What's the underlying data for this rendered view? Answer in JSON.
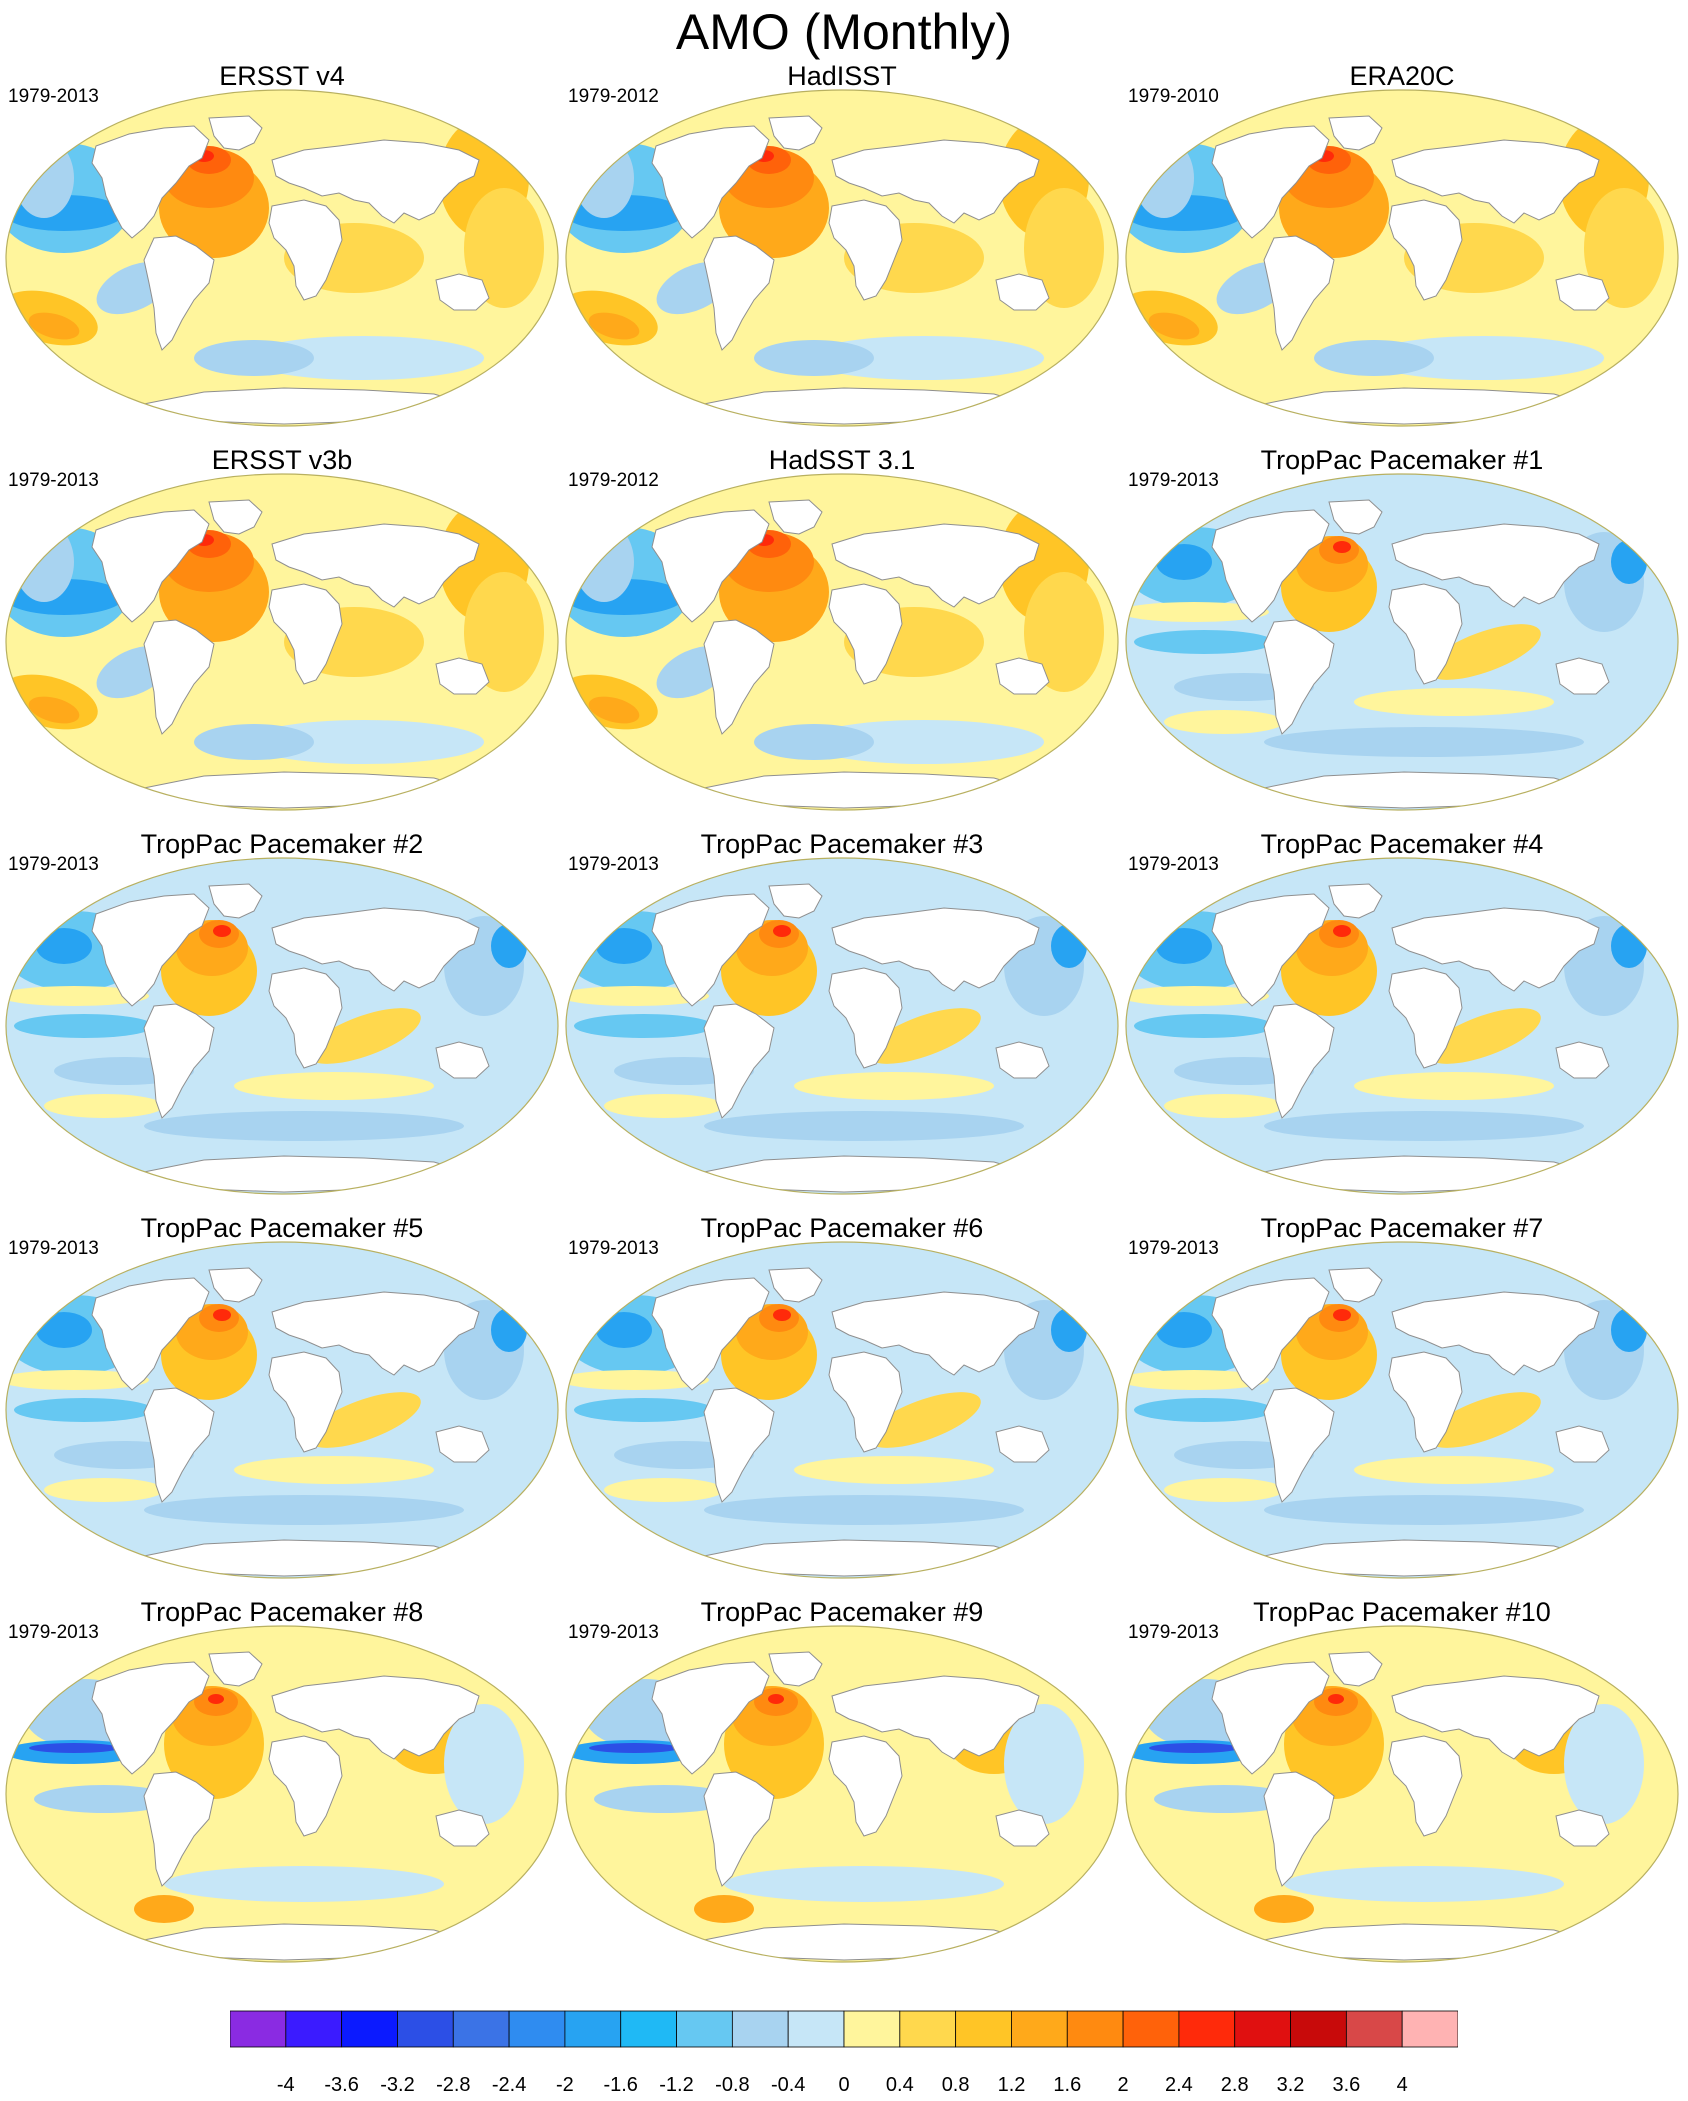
{
  "title": "AMO (Monthly)",
  "panels": [
    {
      "name": "ERSST v4",
      "period": "1979-2013",
      "pattern": "obs_warm_pacific"
    },
    {
      "name": "HadISST",
      "period": "1979-2012",
      "pattern": "obs_warm_pacific"
    },
    {
      "name": "ERA20C",
      "period": "1979-2010",
      "pattern": "obs_warm_pacific"
    },
    {
      "name": "ERSST v3b",
      "period": "1979-2013",
      "pattern": "obs_warm_pacific"
    },
    {
      "name": "HadSST 3.1",
      "period": "1979-2012",
      "pattern": "obs_warm_pacific"
    },
    {
      "name": "TropPac Pacemaker #1",
      "period": "1979-2013",
      "pattern": "model_cool"
    },
    {
      "name": "TropPac Pacemaker #2",
      "period": "1979-2013",
      "pattern": "model_cool"
    },
    {
      "name": "TropPac Pacemaker #3",
      "period": "1979-2013",
      "pattern": "model_cool"
    },
    {
      "name": "TropPac Pacemaker #4",
      "period": "1979-2013",
      "pattern": "model_cool"
    },
    {
      "name": "TropPac Pacemaker #5",
      "period": "1979-2013",
      "pattern": "model_cool"
    },
    {
      "name": "TropPac Pacemaker #6",
      "period": "1979-2013",
      "pattern": "model_cool"
    },
    {
      "name": "TropPac Pacemaker #7",
      "period": "1979-2013",
      "pattern": "model_cool"
    },
    {
      "name": "TropPac Pacemaker #8",
      "period": "1979-2013",
      "pattern": "model_mixed"
    },
    {
      "name": "TropPac Pacemaker #9",
      "period": "1979-2013",
      "pattern": "model_mixed"
    },
    {
      "name": "TropPac Pacemaker #10",
      "period": "1979-2013",
      "pattern": "model_mixed"
    }
  ],
  "colorbar": {
    "labels": [
      "-4",
      "-3.6",
      "-3.2",
      "-2.8",
      "-2.4",
      "-2",
      "-1.6",
      "-1.2",
      "-0.8",
      "-0.4",
      "0",
      "0.4",
      "0.8",
      "1.2",
      "1.6",
      "2",
      "2.4",
      "2.8",
      "3.2",
      "3.6",
      "4"
    ],
    "colors": [
      "#8a2be2",
      "#3b1bff",
      "#0b1aff",
      "#2c4fe6",
      "#3b73e6",
      "#2f8cf0",
      "#27a3f2",
      "#1fb9f5",
      "#66c8f2",
      "#a8d3f0",
      "#c6e6f7",
      "#fff59c",
      "#ffd84d",
      "#ffc526",
      "#ffa91a",
      "#ff8a10",
      "#ff620a",
      "#ff2a0a",
      "#e01010",
      "#c80a0a",
      "#d84848",
      "#ffb3b3"
    ]
  },
  "colors": {
    "land": "#ffffff",
    "coast": "#8f8f8f",
    "map_outline": "#b8b060"
  }
}
